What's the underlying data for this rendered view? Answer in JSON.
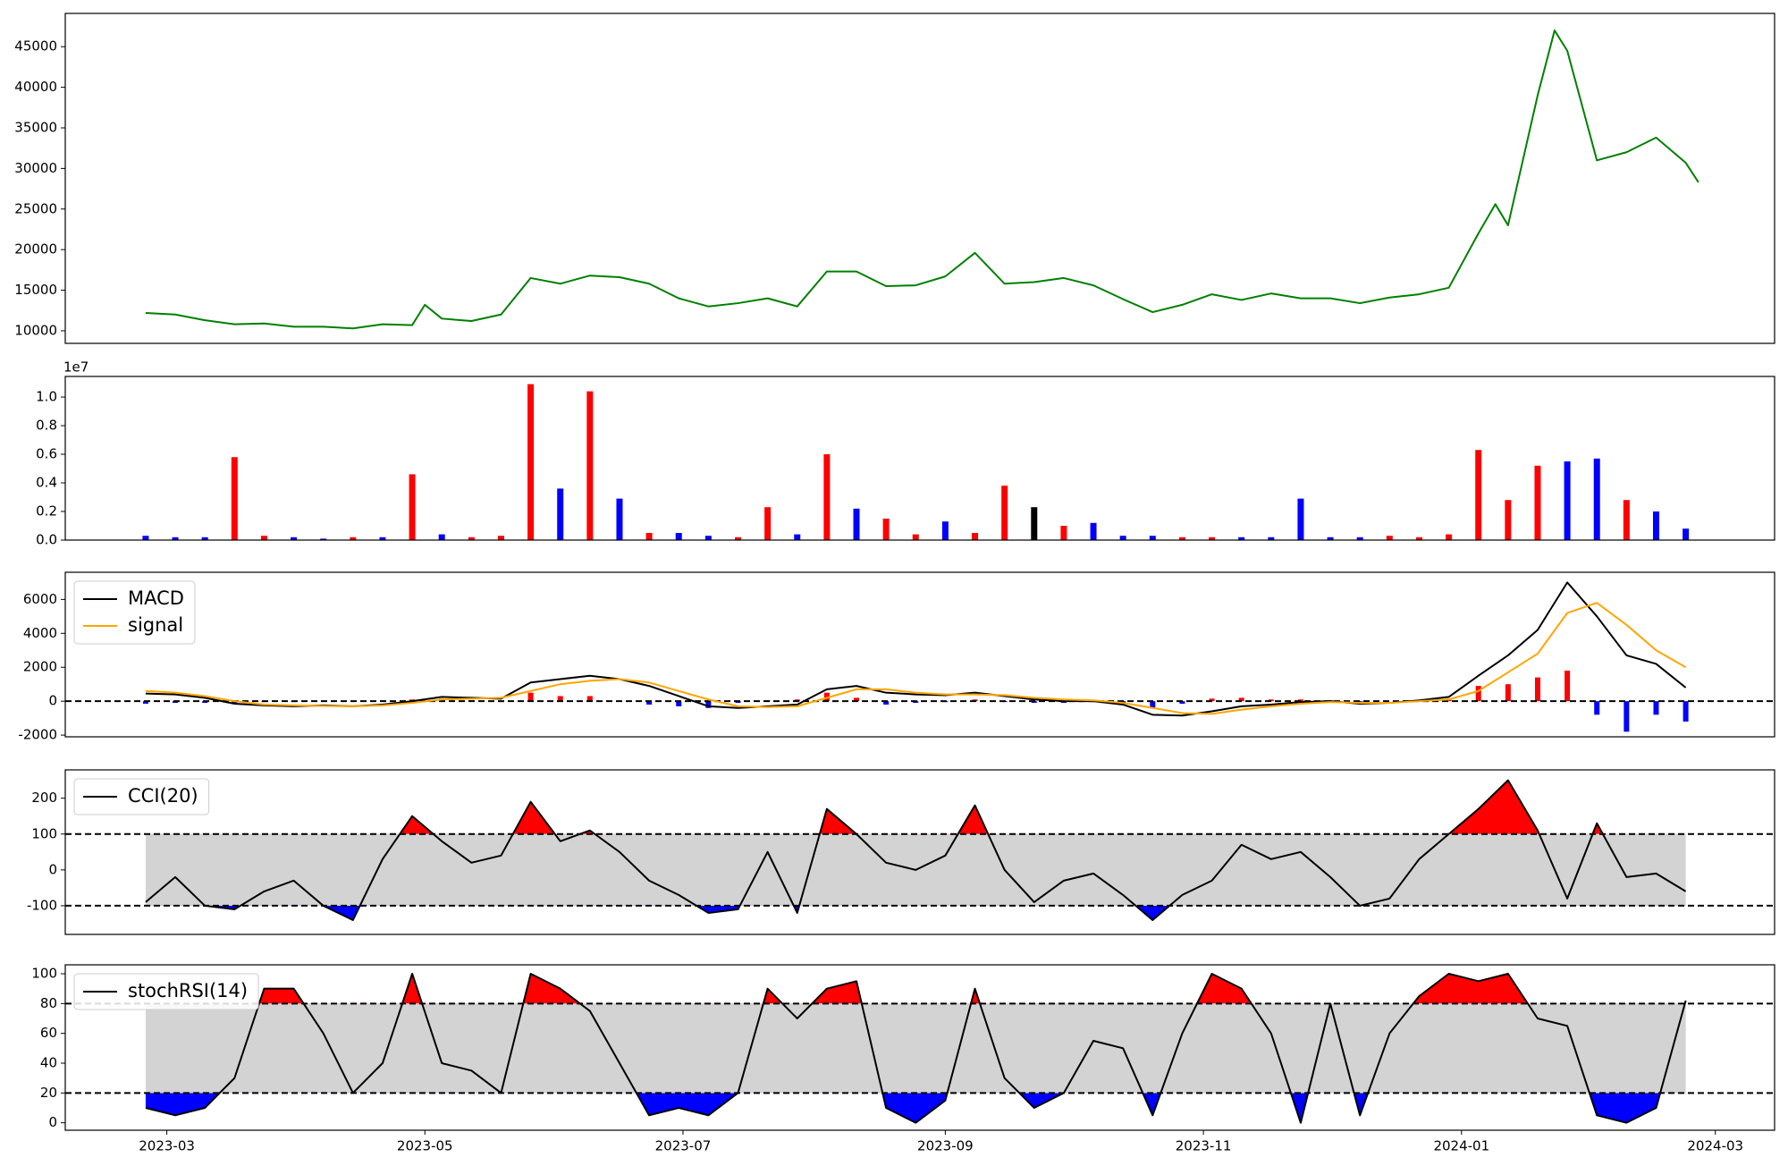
{
  "chart_data": [
    {
      "type": "line",
      "x": [
        "2023-02-24",
        "2023-03-03",
        "2023-03-10",
        "2023-03-17",
        "2023-03-24",
        "2023-03-31",
        "2023-04-07",
        "2023-04-14",
        "2023-04-21",
        "2023-04-28",
        "2023-05-01",
        "2023-05-05",
        "2023-05-12",
        "2023-05-19",
        "2023-05-26",
        "2023-06-02",
        "2023-06-09",
        "2023-06-16",
        "2023-06-23",
        "2023-06-30",
        "2023-07-07",
        "2023-07-14",
        "2023-07-21",
        "2023-07-28",
        "2023-08-04",
        "2023-08-11",
        "2023-08-18",
        "2023-08-25",
        "2023-09-01",
        "2023-09-08",
        "2023-09-15",
        "2023-09-22",
        "2023-09-29",
        "2023-10-06",
        "2023-10-13",
        "2023-10-20",
        "2023-10-27",
        "2023-11-03",
        "2023-11-10",
        "2023-11-17",
        "2023-11-24",
        "2023-12-01",
        "2023-12-08",
        "2023-12-15",
        "2023-12-22",
        "2023-12-29",
        "2024-01-05",
        "2024-01-09",
        "2024-01-12",
        "2024-01-19",
        "2024-01-23",
        "2024-01-26",
        "2024-02-02",
        "2024-02-09",
        "2024-02-16",
        "2024-02-23",
        "2024-02-26"
      ],
      "series": [
        {
          "color": "green",
          "values": [
            12200,
            12000,
            11300,
            10800,
            10900,
            10500,
            10500,
            10300,
            10800,
            10700,
            13200,
            11500,
            11200,
            12000,
            16500,
            15800,
            16800,
            16600,
            15800,
            14000,
            13000,
            13400,
            14000,
            13000,
            17300,
            17300,
            15500,
            15600,
            16700,
            19600,
            15800,
            16000,
            16500,
            15600,
            13900,
            12300,
            13200,
            14500,
            13800,
            14600,
            14000,
            14000,
            13400,
            14100,
            14500,
            15300,
            22000,
            25600,
            23000,
            39000,
            47000,
            44500,
            31000,
            32000,
            33800,
            30700,
            28300
          ]
        }
      ],
      "xlim": [
        "2023-02-05",
        "2024-03-15"
      ],
      "ylim": [
        8450,
        49100
      ],
      "yticks": [
        10000,
        15000,
        20000,
        25000,
        30000,
        35000,
        40000,
        45000
      ]
    },
    {
      "type": "bar",
      "offset_label": "1e7",
      "x": [
        "2023-02-24",
        "2023-03-03",
        "2023-03-10",
        "2023-03-17",
        "2023-03-24",
        "2023-03-31",
        "2023-04-07",
        "2023-04-14",
        "2023-04-21",
        "2023-04-28",
        "2023-05-05",
        "2023-05-12",
        "2023-05-19",
        "2023-05-26",
        "2023-06-02",
        "2023-06-09",
        "2023-06-16",
        "2023-06-23",
        "2023-06-30",
        "2023-07-07",
        "2023-07-14",
        "2023-07-21",
        "2023-07-28",
        "2023-08-04",
        "2023-08-11",
        "2023-08-18",
        "2023-08-25",
        "2023-09-01",
        "2023-09-08",
        "2023-09-15",
        "2023-09-22",
        "2023-09-29",
        "2023-10-06",
        "2023-10-13",
        "2023-10-20",
        "2023-10-27",
        "2023-11-03",
        "2023-11-10",
        "2023-11-17",
        "2023-11-24",
        "2023-12-01",
        "2023-12-08",
        "2023-12-15",
        "2023-12-22",
        "2023-12-29",
        "2024-01-05",
        "2024-01-12",
        "2024-01-19",
        "2024-01-26",
        "2024-02-02",
        "2024-02-09",
        "2024-02-16",
        "2024-02-23"
      ],
      "values": [
        0.03,
        0.02,
        0.02,
        0.58,
        0.03,
        0.02,
        0.01,
        0.02,
        0.02,
        0.46,
        0.04,
        0.02,
        0.03,
        1.09,
        0.36,
        1.04,
        0.29,
        0.05,
        0.05,
        0.03,
        0.02,
        0.23,
        0.04,
        0.6,
        0.22,
        0.15,
        0.04,
        0.13,
        0.05,
        0.38,
        0.23,
        0.1,
        0.12,
        0.03,
        0.03,
        0.02,
        0.02,
        0.02,
        0.02,
        0.29,
        0.02,
        0.02,
        0.03,
        0.02,
        0.04,
        0.63,
        0.28,
        0.52,
        0.55,
        0.57,
        0.28,
        0.2,
        0.08
      ],
      "colors": [
        "blue",
        "blue",
        "blue",
        "red",
        "red",
        "blue",
        "blue",
        "red",
        "blue",
        "red",
        "blue",
        "red",
        "red",
        "red",
        "blue",
        "red",
        "blue",
        "red",
        "blue",
        "blue",
        "red",
        "red",
        "blue",
        "red",
        "blue",
        "red",
        "red",
        "blue",
        "red",
        "red",
        "black",
        "red",
        "blue",
        "blue",
        "blue",
        "red",
        "red",
        "blue",
        "blue",
        "blue",
        "blue",
        "blue",
        "red",
        "red",
        "red",
        "red",
        "red",
        "red",
        "blue",
        "blue",
        "red",
        "blue",
        "blue"
      ],
      "xlim": [
        "2023-02-05",
        "2024-03-15"
      ],
      "ylim": [
        0,
        1.144
      ],
      "yticks": [
        {
          "value": 0,
          "label": "0.0"
        },
        0.2,
        0.4,
        0.6,
        0.8,
        {
          "value": 1,
          "label": "1.0"
        }
      ]
    },
    {
      "type": "line",
      "x": [
        "2023-02-24",
        "2023-03-03",
        "2023-03-10",
        "2023-03-17",
        "2023-03-24",
        "2023-03-31",
        "2023-04-07",
        "2023-04-14",
        "2023-04-21",
        "2023-04-28",
        "2023-05-05",
        "2023-05-12",
        "2023-05-19",
        "2023-05-26",
        "2023-06-02",
        "2023-06-09",
        "2023-06-16",
        "2023-06-23",
        "2023-06-30",
        "2023-07-07",
        "2023-07-14",
        "2023-07-21",
        "2023-07-28",
        "2023-08-04",
        "2023-08-11",
        "2023-08-18",
        "2023-08-25",
        "2023-09-01",
        "2023-09-08",
        "2023-09-15",
        "2023-09-22",
        "2023-09-29",
        "2023-10-06",
        "2023-10-13",
        "2023-10-20",
        "2023-10-27",
        "2023-11-03",
        "2023-11-10",
        "2023-11-17",
        "2023-11-24",
        "2023-12-01",
        "2023-12-08",
        "2023-12-15",
        "2023-12-22",
        "2023-12-29",
        "2024-01-05",
        "2024-01-12",
        "2024-01-19",
        "2024-01-26",
        "2024-02-02",
        "2024-02-09",
        "2024-02-16",
        "2024-02-23"
      ],
      "series": [
        {
          "name": "MACD",
          "color": "black",
          "values": [
            450,
            400,
            200,
            -150,
            -250,
            -300,
            -250,
            -300,
            -200,
            0,
            250,
            200,
            150,
            1100,
            1300,
            1500,
            1300,
            900,
            300,
            -300,
            -400,
            -300,
            -200,
            700,
            900,
            500,
            400,
            350,
            500,
            300,
            100,
            0,
            0,
            -200,
            -800,
            -850,
            -600,
            -300,
            -200,
            -50,
            0,
            -150,
            -100,
            50,
            250,
            1500,
            2700,
            4200,
            7000,
            5000,
            2700,
            2200,
            800
          ]
        },
        {
          "name": "signal",
          "color": "orange",
          "values": [
            600,
            500,
            300,
            0,
            -200,
            -250,
            -280,
            -300,
            -250,
            -100,
            100,
            150,
            200,
            600,
            1000,
            1200,
            1300,
            1100,
            600,
            100,
            -300,
            -350,
            -300,
            200,
            700,
            700,
            500,
            400,
            400,
            350,
            200,
            100,
            50,
            -100,
            -400,
            -700,
            -750,
            -500,
            -300,
            -150,
            -50,
            -100,
            -100,
            0,
            100,
            600,
            1700,
            2800,
            5200,
            5800,
            4500,
            3000,
            2000
          ]
        }
      ],
      "histogram": {
        "positive_color": "red",
        "negative_color": "blue",
        "values": [
          -150,
          -100,
          -100,
          -150,
          -50,
          -50,
          30,
          0,
          50,
          100,
          150,
          50,
          -50,
          500,
          300,
          300,
          0,
          -200,
          -300,
          -400,
          -100,
          50,
          100,
          500,
          200,
          -200,
          -100,
          -50,
          100,
          -50,
          -100,
          -100,
          -50,
          -100,
          -400,
          -150,
          150,
          200,
          100,
          100,
          50,
          -50,
          0,
          50,
          150,
          900,
          1000,
          1400,
          1800,
          -800,
          -1800,
          -800,
          -1200
        ]
      },
      "hlines": [
        0
      ],
      "legend": "upper left",
      "xlim": [
        "2023-02-05",
        "2024-03-15"
      ],
      "ylim": [
        -2100,
        7600
      ],
      "yticks": [
        -2000,
        0,
        2000,
        4000,
        6000
      ]
    },
    {
      "type": "line",
      "x": [
        "2023-02-24",
        "2023-03-03",
        "2023-03-10",
        "2023-03-17",
        "2023-03-24",
        "2023-03-31",
        "2023-04-07",
        "2023-04-14",
        "2023-04-21",
        "2023-04-28",
        "2023-05-05",
        "2023-05-12",
        "2023-05-19",
        "2023-05-26",
        "2023-06-02",
        "2023-06-09",
        "2023-06-16",
        "2023-06-23",
        "2023-06-30",
        "2023-07-07",
        "2023-07-14",
        "2023-07-21",
        "2023-07-28",
        "2023-08-04",
        "2023-08-11",
        "2023-08-18",
        "2023-08-25",
        "2023-09-01",
        "2023-09-08",
        "2023-09-15",
        "2023-09-22",
        "2023-09-29",
        "2023-10-06",
        "2023-10-13",
        "2023-10-20",
        "2023-10-27",
        "2023-11-03",
        "2023-11-10",
        "2023-11-17",
        "2023-11-24",
        "2023-12-01",
        "2023-12-08",
        "2023-12-15",
        "2023-12-22",
        "2023-12-29",
        "2024-01-05",
        "2024-01-12",
        "2024-01-19",
        "2024-01-26",
        "2024-02-02",
        "2024-02-09",
        "2024-02-16",
        "2024-02-23"
      ],
      "series": [
        {
          "name": "CCI(20)",
          "color": "black",
          "values": [
            -90,
            -20,
            -100,
            -110,
            -60,
            -30,
            -100,
            -140,
            30,
            150,
            80,
            20,
            40,
            190,
            80,
            110,
            50,
            -30,
            -70,
            -120,
            -110,
            50,
            -120,
            170,
            100,
            20,
            0,
            40,
            180,
            0,
            -90,
            -30,
            -10,
            -70,
            -140,
            -70,
            -30,
            70,
            30,
            50,
            -20,
            -100,
            -80,
            30,
            100,
            170,
            250,
            110,
            -80,
            130,
            -20,
            -10,
            -60
          ]
        }
      ],
      "band": [
        -100,
        100
      ],
      "band_color": "lightgray",
      "fill_above_color": "red",
      "fill_below_color": "blue",
      "hlines": [
        -100,
        100
      ],
      "legend": "upper left",
      "xlim": [
        "2023-02-05",
        "2024-03-15"
      ],
      "ylim": [
        -180,
        279
      ],
      "yticks": [
        -100,
        0,
        100,
        200
      ]
    },
    {
      "type": "line",
      "x": [
        "2023-02-24",
        "2023-03-03",
        "2023-03-10",
        "2023-03-17",
        "2023-03-24",
        "2023-03-31",
        "2023-04-07",
        "2023-04-14",
        "2023-04-21",
        "2023-04-28",
        "2023-05-05",
        "2023-05-12",
        "2023-05-19",
        "2023-05-26",
        "2023-06-02",
        "2023-06-09",
        "2023-06-16",
        "2023-06-23",
        "2023-06-30",
        "2023-07-07",
        "2023-07-14",
        "2023-07-21",
        "2023-07-28",
        "2023-08-04",
        "2023-08-11",
        "2023-08-18",
        "2023-08-25",
        "2023-09-01",
        "2023-09-08",
        "2023-09-15",
        "2023-09-22",
        "2023-09-29",
        "2023-10-06",
        "2023-10-13",
        "2023-10-20",
        "2023-10-27",
        "2023-11-03",
        "2023-11-10",
        "2023-11-17",
        "2023-11-24",
        "2023-12-01",
        "2023-12-08",
        "2023-12-15",
        "2023-12-22",
        "2023-12-29",
        "2024-01-05",
        "2024-01-12",
        "2024-01-19",
        "2024-01-26",
        "2024-02-02",
        "2024-02-09",
        "2024-02-16",
        "2024-02-23"
      ],
      "series": [
        {
          "name": "stochRSI(14)",
          "color": "black",
          "values": [
            10,
            5,
            10,
            30,
            90,
            90,
            60,
            20,
            40,
            100,
            40,
            35,
            20,
            100,
            90,
            75,
            40,
            5,
            10,
            5,
            20,
            90,
            70,
            90,
            95,
            10,
            0,
            15,
            90,
            30,
            10,
            20,
            55,
            50,
            5,
            60,
            100,
            90,
            60,
            0,
            80,
            5,
            60,
            85,
            100,
            95,
            100,
            70,
            65,
            5,
            0,
            10,
            82
          ]
        }
      ],
      "band": [
        20,
        80
      ],
      "band_color": "lightgray",
      "fill_above_color": "red",
      "fill_below_color": "blue",
      "hlines": [
        20,
        80
      ],
      "legend": "upper left",
      "xlim": [
        "2023-02-05",
        "2024-03-15"
      ],
      "ylim": [
        -5,
        106
      ],
      "yticks": [
        0,
        20,
        40,
        60,
        80,
        100
      ],
      "xticks": [
        "2023-03",
        "2023-05",
        "2023-07",
        "2023-09",
        "2023-11",
        "2024-01",
        "2024-03"
      ]
    }
  ]
}
